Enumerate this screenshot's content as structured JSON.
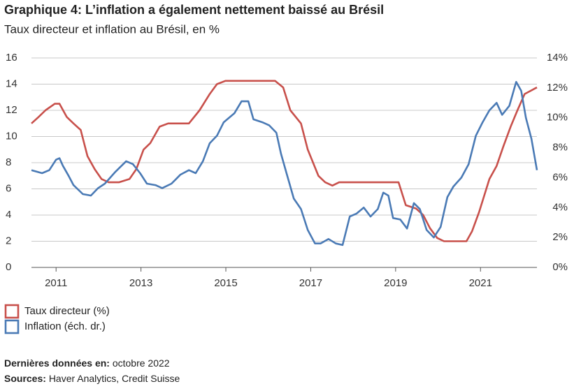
{
  "chart_data": {
    "type": "line",
    "title": "Graphique 4: L’inflation a également nettement baissé au Brésil",
    "subtitle": "Taux directeur et inflation au Brésil, en %",
    "xlim": [
      2010.92,
      2022.83
    ],
    "xticks": [
      {
        "value": 2011.5,
        "label": "2011"
      },
      {
        "value": 2013.5,
        "label": "2013"
      },
      {
        "value": 2015.5,
        "label": "2015"
      },
      {
        "value": 2017.5,
        "label": "2017"
      },
      {
        "value": 2019.5,
        "label": "2019"
      },
      {
        "value": 2021.5,
        "label": "2021"
      }
    ],
    "ylim": [
      0,
      16
    ],
    "yticks": [
      0,
      2,
      4,
      6,
      8,
      10,
      12,
      14,
      16
    ],
    "y2lim": [
      0,
      14
    ],
    "y2ticks": [
      {
        "value": 0,
        "label": "0%"
      },
      {
        "value": 2,
        "label": "2%"
      },
      {
        "value": 4,
        "label": "4%"
      },
      {
        "value": 6,
        "label": "6%"
      },
      {
        "value": 8,
        "label": "8%"
      },
      {
        "value": 10,
        "label": "10%"
      },
      {
        "value": 12,
        "label": "12%"
      },
      {
        "value": 14,
        "label": "14%"
      }
    ],
    "grid": true,
    "series": [
      {
        "name": "Taux directeur (%)",
        "color": "#c8504b",
        "axis": "y",
        "x": [
          2010.92,
          2011.09,
          2011.25,
          2011.47,
          2011.58,
          2011.75,
          2011.91,
          2012.08,
          2012.24,
          2012.41,
          2012.57,
          2012.74,
          2012.98,
          2013.23,
          2013.39,
          2013.56,
          2013.72,
          2013.94,
          2014.14,
          2014.63,
          2014.88,
          2015.12,
          2015.29,
          2015.49,
          2016.66,
          2016.85,
          2017.02,
          2017.27,
          2017.43,
          2017.68,
          2017.84,
          2018.01,
          2018.17,
          2019.57,
          2019.74,
          2019.98,
          2020.15,
          2020.31,
          2020.48,
          2020.64,
          2021.17,
          2021.3,
          2021.47,
          2021.71,
          2021.88,
          2022.04,
          2022.21,
          2022.37,
          2022.54,
          2022.83
        ],
        "values": [
          11,
          11.5,
          12,
          12.5,
          12.5,
          11.5,
          11,
          10.5,
          8.5,
          7.5,
          6.75,
          6.5,
          6.5,
          6.75,
          7.5,
          9,
          9.5,
          10.75,
          11,
          11,
          12,
          13.25,
          14,
          14.25,
          14.25,
          13.75,
          12,
          11,
          9,
          7,
          6.5,
          6.25,
          6.5,
          6.5,
          4.75,
          4.5,
          4,
          3,
          2.25,
          2,
          2,
          2.75,
          4.25,
          6.75,
          7.75,
          9.25,
          10.75,
          12,
          13.25,
          13.75
        ]
      },
      {
        "name": "Inflation (éch. dr.)",
        "color": "#4a7ab5",
        "axis": "y2",
        "x": [
          2010.92,
          2011.17,
          2011.34,
          2011.5,
          2011.58,
          2011.66,
          2011.8,
          2011.91,
          2012.13,
          2012.32,
          2012.49,
          2012.65,
          2012.9,
          2013.15,
          2013.31,
          2013.48,
          2013.64,
          2013.84,
          2014.0,
          2014.22,
          2014.43,
          2014.63,
          2014.79,
          2014.96,
          2015.12,
          2015.29,
          2015.45,
          2015.7,
          2015.87,
          2016.03,
          2016.15,
          2016.36,
          2016.52,
          2016.69,
          2016.8,
          2016.94,
          2017.1,
          2017.27,
          2017.43,
          2017.6,
          2017.73,
          2017.92,
          2018.09,
          2018.25,
          2018.42,
          2018.58,
          2018.75,
          2018.91,
          2019.08,
          2019.21,
          2019.33,
          2019.44,
          2019.61,
          2019.77,
          2019.93,
          2020.07,
          2020.23,
          2020.4,
          2020.56,
          2020.72,
          2020.86,
          2021.05,
          2021.22,
          2021.39,
          2021.55,
          2021.71,
          2021.88,
          2022.01,
          2022.18,
          2022.34,
          2022.46,
          2022.57,
          2022.7,
          2022.83
        ],
        "values": [
          6.5,
          6.3,
          6.5,
          7.2,
          7.3,
          6.8,
          6.1,
          5.5,
          4.9,
          4.8,
          5.3,
          5.6,
          6.4,
          7.1,
          6.9,
          6.3,
          5.6,
          5.5,
          5.3,
          5.6,
          6.2,
          6.5,
          6.3,
          7.1,
          8.3,
          8.8,
          9.7,
          10.3,
          11.1,
          11.1,
          9.9,
          9.7,
          9.5,
          9.0,
          7.6,
          6.2,
          4.6,
          3.9,
          2.5,
          1.6,
          1.6,
          1.9,
          1.6,
          1.5,
          3.4,
          3.6,
          4.0,
          3.4,
          3.9,
          5.0,
          4.8,
          3.3,
          3.2,
          2.6,
          4.3,
          3.9,
          2.5,
          2.0,
          2.7,
          4.7,
          5.4,
          6.0,
          6.9,
          8.8,
          9.7,
          10.5,
          11.0,
          10.2,
          10.8,
          12.4,
          11.8,
          10.0,
          8.6,
          6.5
        ]
      }
    ]
  },
  "footer": {
    "last_label": "Dernières données en:",
    "last_value": "octobre 2022",
    "sources_label": "Sources:",
    "sources_value": "Haver Analytics, Credit Suisse"
  }
}
